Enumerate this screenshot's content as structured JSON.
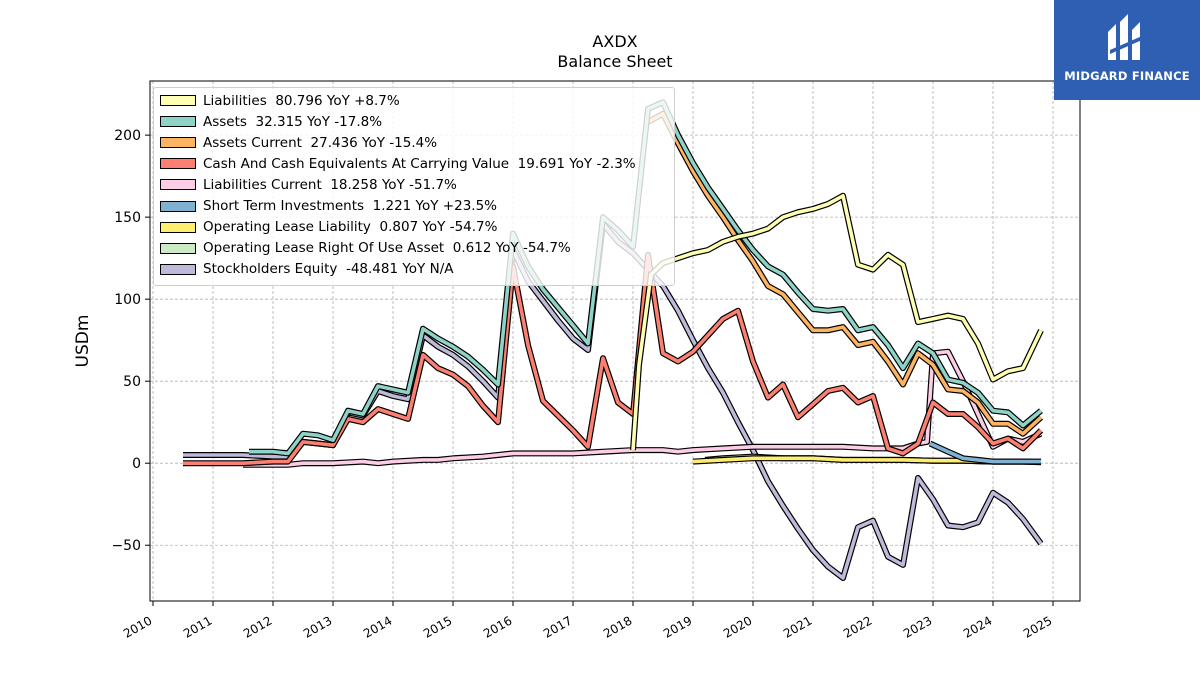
{
  "brand": {
    "name": "MIDGARD FINANCE",
    "icon": "midgard-logo-icon",
    "color": "#2f5fb3"
  },
  "chart_data": {
    "type": "line",
    "title": "AXDX",
    "subtitle": "Balance  Sheet",
    "ylabel": "USDm",
    "xlabel": "",
    "xlim": [
      2009.95,
      2025.45
    ],
    "ylim": [
      -84,
      233
    ],
    "x_ticks": [
      "2010",
      "2011",
      "2012",
      "2013",
      "2014",
      "2015",
      "2016",
      "2017",
      "2018",
      "2019",
      "2020",
      "2021",
      "2022",
      "2023",
      "2024",
      "2025"
    ],
    "y_ticks": [
      "−50",
      "0",
      "50",
      "100",
      "150",
      "200"
    ],
    "y_tick_values": [
      -50,
      0,
      50,
      100,
      150,
      200
    ],
    "grid": true,
    "legend_position": "top-left",
    "series": [
      {
        "name": "Liabilities",
        "legend": "Liabilities  80.796 YoY +8.7%",
        "color": "#ffffb3",
        "points": [
          [
            2018.0,
            8
          ],
          [
            2018.1,
            60
          ],
          [
            2018.3,
            115
          ],
          [
            2018.5,
            122
          ],
          [
            2018.75,
            125
          ],
          [
            2019.0,
            128
          ],
          [
            2019.25,
            130
          ],
          [
            2019.5,
            135
          ],
          [
            2019.75,
            138
          ],
          [
            2020.0,
            140
          ],
          [
            2020.25,
            143
          ],
          [
            2020.5,
            150
          ],
          [
            2020.75,
            153
          ],
          [
            2021.0,
            155
          ],
          [
            2021.25,
            158
          ],
          [
            2021.5,
            163
          ],
          [
            2021.75,
            121
          ],
          [
            2022.0,
            118
          ],
          [
            2022.25,
            127
          ],
          [
            2022.5,
            121
          ],
          [
            2022.75,
            86
          ],
          [
            2023.0,
            88
          ],
          [
            2023.25,
            90
          ],
          [
            2023.5,
            88
          ],
          [
            2023.75,
            73
          ],
          [
            2024.0,
            51
          ],
          [
            2024.25,
            56
          ],
          [
            2024.5,
            58
          ],
          [
            2024.8,
            81
          ]
        ]
      },
      {
        "name": "Assets",
        "legend": "Assets  32.315 YoY -17.8%",
        "color": "#8dd3c7",
        "points": [
          [
            2011.6,
            7
          ],
          [
            2012.0,
            7
          ],
          [
            2012.25,
            6
          ],
          [
            2012.5,
            18
          ],
          [
            2012.75,
            17
          ],
          [
            2013.0,
            14
          ],
          [
            2013.25,
            32
          ],
          [
            2013.5,
            30
          ],
          [
            2013.75,
            47
          ],
          [
            2014.0,
            45
          ],
          [
            2014.25,
            43
          ],
          [
            2014.5,
            82
          ],
          [
            2014.75,
            76
          ],
          [
            2015.0,
            71
          ],
          [
            2015.25,
            65
          ],
          [
            2015.5,
            57
          ],
          [
            2015.75,
            48
          ],
          [
            2016.0,
            140
          ],
          [
            2016.25,
            120
          ],
          [
            2016.5,
            106
          ],
          [
            2016.75,
            95
          ],
          [
            2017.0,
            84
          ],
          [
            2017.25,
            73
          ],
          [
            2017.5,
            150
          ],
          [
            2017.75,
            142
          ],
          [
            2018.0,
            132
          ],
          [
            2018.25,
            216
          ],
          [
            2018.5,
            220
          ],
          [
            2018.75,
            200
          ],
          [
            2019.0,
            183
          ],
          [
            2019.25,
            168
          ],
          [
            2019.5,
            155
          ],
          [
            2019.75,
            142
          ],
          [
            2020.0,
            130
          ],
          [
            2020.25,
            120
          ],
          [
            2020.5,
            115
          ],
          [
            2020.75,
            104
          ],
          [
            2021.0,
            94
          ],
          [
            2021.25,
            93
          ],
          [
            2021.5,
            94
          ],
          [
            2021.75,
            81
          ],
          [
            2022.0,
            83
          ],
          [
            2022.25,
            72
          ],
          [
            2022.5,
            58
          ],
          [
            2022.75,
            73
          ],
          [
            2023.0,
            67
          ],
          [
            2023.25,
            51
          ],
          [
            2023.5,
            49
          ],
          [
            2023.75,
            43
          ],
          [
            2024.0,
            32
          ],
          [
            2024.25,
            31
          ],
          [
            2024.5,
            23
          ],
          [
            2024.8,
            32
          ]
        ]
      },
      {
        "name": "Assets Current",
        "legend": "Assets Current  27.436 YoY -15.4%",
        "color": "#fdb462",
        "points": [
          [
            2018.25,
            208
          ],
          [
            2018.5,
            213
          ],
          [
            2018.75,
            195
          ],
          [
            2019.0,
            178
          ],
          [
            2019.25,
            163
          ],
          [
            2019.5,
            150
          ],
          [
            2019.75,
            136
          ],
          [
            2020.0,
            123
          ],
          [
            2020.25,
            108
          ],
          [
            2020.5,
            103
          ],
          [
            2020.75,
            92
          ],
          [
            2021.0,
            81
          ],
          [
            2021.25,
            81
          ],
          [
            2021.5,
            83
          ],
          [
            2021.75,
            72
          ],
          [
            2022.0,
            74
          ],
          [
            2022.25,
            62
          ],
          [
            2022.5,
            48
          ],
          [
            2022.75,
            67
          ],
          [
            2023.0,
            60
          ],
          [
            2023.25,
            45
          ],
          [
            2023.5,
            44
          ],
          [
            2023.75,
            37
          ],
          [
            2024.0,
            24
          ],
          [
            2024.25,
            24
          ],
          [
            2024.5,
            18
          ],
          [
            2024.8,
            28
          ]
        ]
      },
      {
        "name": "Cash And Cash Equivalents At Carrying Value",
        "legend": "Cash And Cash Equivalents At Carrying Value  19.691 YoY -2.3%",
        "color": "#fb8072",
        "points": [
          [
            2010.5,
            0
          ],
          [
            2011.0,
            0
          ],
          [
            2011.5,
            0
          ],
          [
            2012.0,
            1
          ],
          [
            2012.25,
            1
          ],
          [
            2012.5,
            13
          ],
          [
            2012.75,
            12
          ],
          [
            2013.0,
            11
          ],
          [
            2013.25,
            27
          ],
          [
            2013.5,
            25
          ],
          [
            2013.75,
            33
          ],
          [
            2014.0,
            30
          ],
          [
            2014.25,
            27
          ],
          [
            2014.5,
            66
          ],
          [
            2014.75,
            58
          ],
          [
            2015.0,
            54
          ],
          [
            2015.25,
            47
          ],
          [
            2015.5,
            35
          ],
          [
            2015.75,
            25
          ],
          [
            2016.0,
            120
          ],
          [
            2016.25,
            72
          ],
          [
            2016.5,
            38
          ],
          [
            2016.75,
            29
          ],
          [
            2017.0,
            20
          ],
          [
            2017.25,
            10
          ],
          [
            2017.5,
            64
          ],
          [
            2017.75,
            37
          ],
          [
            2018.0,
            30
          ],
          [
            2018.25,
            127
          ],
          [
            2018.5,
            67
          ],
          [
            2018.75,
            62
          ],
          [
            2019.0,
            68
          ],
          [
            2019.25,
            78
          ],
          [
            2019.5,
            88
          ],
          [
            2019.75,
            93
          ],
          [
            2020.0,
            62
          ],
          [
            2020.25,
            40
          ],
          [
            2020.5,
            48
          ],
          [
            2020.75,
            28
          ],
          [
            2021.0,
            36
          ],
          [
            2021.25,
            44
          ],
          [
            2021.5,
            46
          ],
          [
            2021.75,
            37
          ],
          [
            2022.0,
            41
          ],
          [
            2022.25,
            9
          ],
          [
            2022.5,
            6
          ],
          [
            2022.75,
            12
          ],
          [
            2023.0,
            37
          ],
          [
            2023.25,
            30
          ],
          [
            2023.5,
            30
          ],
          [
            2023.75,
            22
          ],
          [
            2024.0,
            12
          ],
          [
            2024.25,
            15
          ],
          [
            2024.5,
            9
          ],
          [
            2024.8,
            20
          ]
        ]
      },
      {
        "name": "Liabilities Current",
        "legend": "Liabilities Current  18.258 YoY -51.7%",
        "color": "#fccde5",
        "points": [
          [
            2011.5,
            -1
          ],
          [
            2012.0,
            -1
          ],
          [
            2012.25,
            -1
          ],
          [
            2012.5,
            0
          ],
          [
            2013.0,
            0
          ],
          [
            2013.5,
            1
          ],
          [
            2013.75,
            0
          ],
          [
            2014.0,
            1
          ],
          [
            2014.5,
            2
          ],
          [
            2014.75,
            2
          ],
          [
            2015.0,
            3
          ],
          [
            2015.5,
            4
          ],
          [
            2016.0,
            6
          ],
          [
            2016.5,
            6
          ],
          [
            2017.0,
            6
          ],
          [
            2017.5,
            7
          ],
          [
            2018.0,
            8
          ],
          [
            2018.5,
            8
          ],
          [
            2018.75,
            7
          ],
          [
            2019.0,
            8
          ],
          [
            2019.5,
            9
          ],
          [
            2020.0,
            10
          ],
          [
            2020.5,
            10
          ],
          [
            2021.0,
            10
          ],
          [
            2021.5,
            10
          ],
          [
            2022.0,
            9
          ],
          [
            2022.5,
            9
          ],
          [
            2022.75,
            12
          ],
          [
            2022.9,
            13
          ],
          [
            2023.0,
            67
          ],
          [
            2023.25,
            68
          ],
          [
            2023.5,
            50
          ],
          [
            2023.75,
            30
          ],
          [
            2024.0,
            10
          ],
          [
            2024.25,
            15
          ],
          [
            2024.5,
            13
          ],
          [
            2024.8,
            18
          ]
        ]
      },
      {
        "name": "Short Term Investments",
        "legend": "Short Term Investments  1.221 YoY +23.5%",
        "color": "#80b1d3",
        "points": [
          [
            2022.95,
            12
          ],
          [
            2023.25,
            7
          ],
          [
            2023.5,
            3
          ],
          [
            2023.75,
            2
          ],
          [
            2024.0,
            1
          ],
          [
            2024.5,
            1
          ],
          [
            2024.8,
            1
          ]
        ]
      },
      {
        "name": "Operating Lease Liability",
        "legend": "Operating Lease Liability  0.807 YoY -54.7%",
        "color": "#ffed6f",
        "points": [
          [
            2019.0,
            1
          ],
          [
            2019.5,
            2
          ],
          [
            2020.0,
            3
          ],
          [
            2020.5,
            3
          ],
          [
            2021.0,
            3
          ],
          [
            2021.5,
            2
          ],
          [
            2022.0,
            2
          ],
          [
            2022.5,
            2
          ],
          [
            2023.0,
            1.5
          ],
          [
            2023.5,
            1.5
          ],
          [
            2024.0,
            1
          ],
          [
            2024.5,
            1
          ],
          [
            2024.8,
            0.8
          ]
        ]
      },
      {
        "name": "Operating Lease Right Of Use Asset",
        "legend": "Operating Lease Right Of Use Asset  0.612 YoY -54.7%",
        "color": "#ccebc5",
        "points": [
          [
            2019.2,
            2
          ],
          [
            2019.5,
            3
          ],
          [
            2020.0,
            4
          ],
          [
            2020.5,
            3
          ],
          [
            2021.0,
            3
          ],
          [
            2021.5,
            2
          ],
          [
            2022.0,
            2
          ],
          [
            2022.5,
            2
          ],
          [
            2023.0,
            1.5
          ],
          [
            2023.5,
            1.5
          ],
          [
            2024.0,
            1
          ],
          [
            2024.5,
            1
          ],
          [
            2024.8,
            0.6
          ]
        ]
      },
      {
        "name": "Stockholders Equity",
        "legend": "Stockholders Equity  -48.481 YoY N/A",
        "color": "#bebada",
        "points": [
          [
            2010.5,
            5
          ],
          [
            2011.0,
            5
          ],
          [
            2011.5,
            5
          ],
          [
            2012.0,
            4
          ],
          [
            2012.25,
            4
          ],
          [
            2012.5,
            13
          ],
          [
            2012.75,
            12
          ],
          [
            2013.0,
            11
          ],
          [
            2013.25,
            31
          ],
          [
            2013.5,
            29
          ],
          [
            2013.75,
            44
          ],
          [
            2014.0,
            41
          ],
          [
            2014.25,
            39
          ],
          [
            2014.5,
            78
          ],
          [
            2014.75,
            71
          ],
          [
            2015.0,
            66
          ],
          [
            2015.25,
            59
          ],
          [
            2015.5,
            50
          ],
          [
            2015.75,
            40
          ],
          [
            2016.0,
            130
          ],
          [
            2016.25,
            111
          ],
          [
            2016.5,
            99
          ],
          [
            2016.75,
            87
          ],
          [
            2017.0,
            76
          ],
          [
            2017.25,
            69
          ],
          [
            2017.5,
            146
          ],
          [
            2017.75,
            135
          ],
          [
            2018.0,
            128
          ],
          [
            2018.5,
            108
          ],
          [
            2018.75,
            93
          ],
          [
            2019.0,
            75
          ],
          [
            2019.25,
            58
          ],
          [
            2019.5,
            43
          ],
          [
            2019.75,
            25
          ],
          [
            2020.0,
            8
          ],
          [
            2020.25,
            -11
          ],
          [
            2020.5,
            -26
          ],
          [
            2020.75,
            -40
          ],
          [
            2021.0,
            -53
          ],
          [
            2021.25,
            -63
          ],
          [
            2021.5,
            -70
          ],
          [
            2021.75,
            -39
          ],
          [
            2022.0,
            -35
          ],
          [
            2022.25,
            -57
          ],
          [
            2022.5,
            -62
          ],
          [
            2022.75,
            -9
          ],
          [
            2023.0,
            -22
          ],
          [
            2023.25,
            -38
          ],
          [
            2023.5,
            -39
          ],
          [
            2023.75,
            -36
          ],
          [
            2024.0,
            -18
          ],
          [
            2024.25,
            -24
          ],
          [
            2024.5,
            -34
          ],
          [
            2024.8,
            -49
          ]
        ]
      }
    ]
  }
}
